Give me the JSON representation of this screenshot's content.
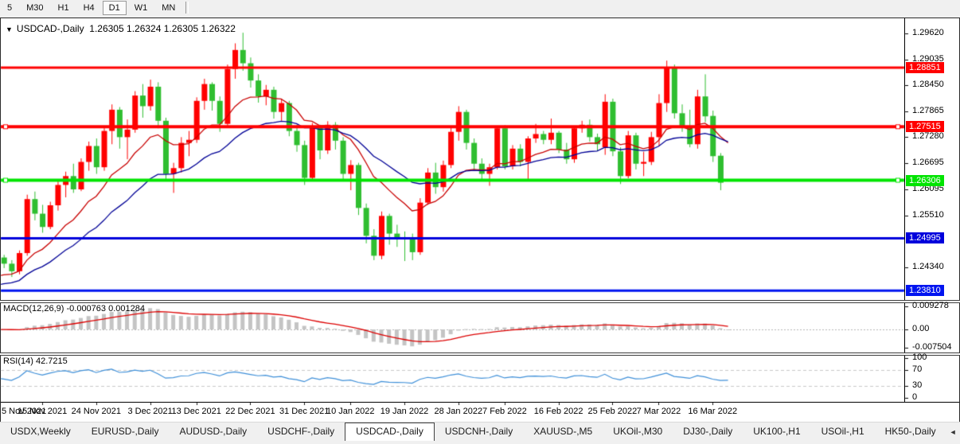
{
  "toolbar": {
    "items": [
      "5",
      "M30",
      "H1",
      "H4",
      "D1",
      "W1",
      "MN"
    ],
    "active": "D1"
  },
  "title": {
    "dropdown_icon": "▼",
    "symbol": "USDCAD-,Daily",
    "open": "1.26305",
    "high": "1.26324",
    "low": "1.26305",
    "close": "1.26322"
  },
  "chart_data": {
    "type": "candlestick",
    "symbol": "USDCAD",
    "timeframe": "Daily",
    "y_range": {
      "top": 1.2984,
      "bottom": 1.236
    },
    "y_ticks": [
      {
        "label": "1.29620",
        "value": 1.2962
      },
      {
        "label": "1.29035",
        "value": 1.29035
      },
      {
        "label": "1.28450",
        "value": 1.2845
      },
      {
        "label": "1.27865",
        "value": 1.27865
      },
      {
        "label": "1.27280",
        "value": 1.2728
      },
      {
        "label": "1.26695",
        "value": 1.26695
      },
      {
        "label": "1.26095",
        "value": 1.26095
      },
      {
        "label": "1.25510",
        "value": 1.2551
      },
      {
        "label": "1.24340",
        "value": 1.2434
      }
    ],
    "price_lines": [
      {
        "label": "1.28851",
        "value": 1.28851,
        "color": "#FF0000",
        "width": 3,
        "handles": false
      },
      {
        "label": "1.27515",
        "value": 1.27515,
        "color": "#FF0000",
        "width": 4,
        "handles": true
      },
      {
        "label": "1.26306",
        "value": 1.26306,
        "color": "#00E400",
        "width": 4,
        "handles": true
      },
      {
        "label": "1.24995",
        "value": 1.24995,
        "color": "#0000DC",
        "width": 3,
        "handles": false
      },
      {
        "label": "1.23810",
        "value": 1.2381,
        "color": "#0014F0",
        "width": 3,
        "handles": false
      }
    ],
    "x_labels": [
      {
        "text": "5 Nov 2021",
        "index": 0
      },
      {
        "text": "15 Nov 2021",
        "index": 6
      },
      {
        "text": "24 Nov 2021",
        "index": 13
      },
      {
        "text": "3 Dec 2021",
        "index": 20
      },
      {
        "text": "13 Dec 2021",
        "index": 26
      },
      {
        "text": "22 Dec 2021",
        "index": 33
      },
      {
        "text": "31 Dec 2021",
        "index": 40
      },
      {
        "text": "10 Jan 2022",
        "index": 46
      },
      {
        "text": "19 Jan 2022",
        "index": 53
      },
      {
        "text": "28 Jan 2022",
        "index": 60
      },
      {
        "text": "7 Feb 2022",
        "index": 66
      },
      {
        "text": "16 Feb 2022",
        "index": 73
      },
      {
        "text": "25 Feb 2022",
        "index": 80
      },
      {
        "text": "7 Mar 2022",
        "index": 86
      },
      {
        "text": "16 Mar 2022",
        "index": 93
      }
    ],
    "candles": [
      [
        1.2452,
        1.2468,
        1.2441,
        1.2456
      ],
      [
        1.2456,
        1.2462,
        1.2432,
        1.2442
      ],
      [
        1.2442,
        1.245,
        1.2412,
        1.2425
      ],
      [
        1.2425,
        1.2472,
        1.2418,
        1.2466
      ],
      [
        1.2466,
        1.2598,
        1.246,
        1.2588
      ],
      [
        1.2588,
        1.2605,
        1.254,
        1.2555
      ],
      [
        1.2555,
        1.2575,
        1.2512,
        1.2525
      ],
      [
        1.2525,
        1.2582,
        1.252,
        1.2574
      ],
      [
        1.2574,
        1.263,
        1.2562,
        1.262
      ],
      [
        1.262,
        1.265,
        1.2592,
        1.264
      ],
      [
        1.264,
        1.2668,
        1.2602,
        1.261
      ],
      [
        1.261,
        1.268,
        1.2606,
        1.2672
      ],
      [
        1.2672,
        1.2718,
        1.2652,
        1.2708
      ],
      [
        1.2708,
        1.2725,
        1.2645,
        1.266
      ],
      [
        1.266,
        1.275,
        1.2652,
        1.2742
      ],
      [
        1.2742,
        1.2802,
        1.2712,
        1.279
      ],
      [
        1.279,
        1.2796,
        1.2702,
        1.2728
      ],
      [
        1.2728,
        1.2768,
        1.2678,
        1.2745
      ],
      [
        1.2745,
        1.2832,
        1.2738,
        1.2822
      ],
      [
        1.2822,
        1.2848,
        1.2772,
        1.2798
      ],
      [
        1.2798,
        1.2858,
        1.2788,
        1.2842
      ],
      [
        1.2842,
        1.2852,
        1.2748,
        1.2765
      ],
      [
        1.2765,
        1.2772,
        1.2632,
        1.2645
      ],
      [
        1.2645,
        1.267,
        1.2602,
        1.2658
      ],
      [
        1.2658,
        1.2728,
        1.2648,
        1.2715
      ],
      [
        1.2715,
        1.2742,
        1.2685,
        1.2722
      ],
      [
        1.2722,
        1.2818,
        1.2715,
        1.281
      ],
      [
        1.281,
        1.286,
        1.279,
        1.2848
      ],
      [
        1.2848,
        1.2852,
        1.2788,
        1.281
      ],
      [
        1.281,
        1.282,
        1.274,
        1.2758
      ],
      [
        1.2758,
        1.2892,
        1.2752,
        1.2882
      ],
      [
        1.2882,
        1.294,
        1.286,
        1.2925
      ],
      [
        1.2925,
        1.2964,
        1.2878,
        1.2895
      ],
      [
        1.2895,
        1.2908,
        1.284,
        1.2856
      ],
      [
        1.2856,
        1.287,
        1.2806,
        1.282
      ],
      [
        1.282,
        1.2846,
        1.28,
        1.2835
      ],
      [
        1.2835,
        1.2842,
        1.277,
        1.2785
      ],
      [
        1.2785,
        1.2815,
        1.2765,
        1.2805
      ],
      [
        1.2805,
        1.281,
        1.273,
        1.2742
      ],
      [
        1.2742,
        1.2756,
        1.2695,
        1.271
      ],
      [
        1.271,
        1.272,
        1.262,
        1.2636
      ],
      [
        1.2636,
        1.276,
        1.263,
        1.275
      ],
      [
        1.275,
        1.2756,
        1.2678,
        1.2698
      ],
      [
        1.2698,
        1.2764,
        1.269,
        1.2756
      ],
      [
        1.2756,
        1.2762,
        1.27,
        1.272
      ],
      [
        1.272,
        1.2728,
        1.263,
        1.2645
      ],
      [
        1.2645,
        1.2676,
        1.2608,
        1.2665
      ],
      [
        1.2665,
        1.267,
        1.2552,
        1.2568
      ],
      [
        1.2568,
        1.2578,
        1.2488,
        1.2505
      ],
      [
        1.2505,
        1.252,
        1.245,
        1.246
      ],
      [
        1.246,
        1.256,
        1.2452,
        1.255
      ],
      [
        1.255,
        1.2555,
        1.2485,
        1.251
      ],
      [
        1.251,
        1.253,
        1.248,
        1.25
      ],
      [
        1.25,
        1.2515,
        1.2448,
        1.2498
      ],
      [
        1.2498,
        1.251,
        1.245,
        1.2468
      ],
      [
        1.2468,
        1.259,
        1.2462,
        1.258
      ],
      [
        1.258,
        1.2658,
        1.2575,
        1.2648
      ],
      [
        1.2648,
        1.267,
        1.26,
        1.2615
      ],
      [
        1.2615,
        1.2675,
        1.2605,
        1.2665
      ],
      [
        1.2665,
        1.275,
        1.2658,
        1.274
      ],
      [
        1.274,
        1.2798,
        1.272,
        1.2785
      ],
      [
        1.2785,
        1.279,
        1.27,
        1.2715
      ],
      [
        1.2715,
        1.2725,
        1.2655,
        1.2668
      ],
      [
        1.2668,
        1.268,
        1.2632,
        1.2645
      ],
      [
        1.2645,
        1.2668,
        1.2618,
        1.266
      ],
      [
        1.266,
        1.2752,
        1.2655,
        1.2748
      ],
      [
        1.2748,
        1.2755,
        1.2655,
        1.2662
      ],
      [
        1.2662,
        1.271,
        1.2655,
        1.2702
      ],
      [
        1.2702,
        1.2712,
        1.2662,
        1.2672
      ],
      [
        1.2672,
        1.273,
        1.2628,
        1.2725
      ],
      [
        1.2725,
        1.2758,
        1.2715,
        1.2735
      ],
      [
        1.2735,
        1.2742,
        1.2712,
        1.2722
      ],
      [
        1.2722,
        1.277,
        1.2712,
        1.2738
      ],
      [
        1.2738,
        1.2742,
        1.2692,
        1.27
      ],
      [
        1.27,
        1.2715,
        1.2668,
        1.2678
      ],
      [
        1.2678,
        1.2752,
        1.267,
        1.2748
      ],
      [
        1.2748,
        1.2765,
        1.2738,
        1.2756
      ],
      [
        1.2756,
        1.2768,
        1.2718,
        1.2728
      ],
      [
        1.2728,
        1.2736,
        1.2698,
        1.2712
      ],
      [
        1.2705,
        1.2825,
        1.2688,
        1.2808
      ],
      [
        1.2808,
        1.2815,
        1.2685,
        1.2696
      ],
      [
        1.2696,
        1.2705,
        1.2622,
        1.264
      ],
      [
        1.264,
        1.2742,
        1.2635,
        1.2732
      ],
      [
        1.2732,
        1.2738,
        1.2655,
        1.2668
      ],
      [
        1.2668,
        1.2695,
        1.264,
        1.2672
      ],
      [
        1.2672,
        1.274,
        1.2665,
        1.2728
      ],
      [
        1.2728,
        1.2825,
        1.2708,
        1.2805
      ],
      [
        1.2805,
        1.2901,
        1.2785,
        1.2886
      ],
      [
        1.2886,
        1.2892,
        1.277,
        1.2782
      ],
      [
        1.2782,
        1.2802,
        1.274,
        1.2752
      ],
      [
        1.2752,
        1.279,
        1.2705,
        1.2712
      ],
      [
        1.2712,
        1.2835,
        1.2702,
        1.282
      ],
      [
        1.282,
        1.287,
        1.2762,
        1.2775
      ],
      [
        1.2776,
        1.2788,
        1.2672,
        1.2685
      ],
      [
        1.2686,
        1.2692,
        1.2608,
        1.2625
      ],
      [
        1.26305,
        1.26324,
        1.26305,
        1.26322
      ]
    ],
    "moving_averages": [
      {
        "name": "ma-fast",
        "color": "#C80000",
        "alpha": 0.15,
        "seed": 1.2405
      },
      {
        "name": "ma-slow",
        "color": "#000096",
        "alpha": 0.075,
        "seed": 1.2388
      }
    ],
    "macd": {
      "label": "MACD(12,26,9)",
      "values_text": "-0.000763 0.001284",
      "value_main": -0.000763,
      "value_signal": 0.001284,
      "params": [
        12,
        26,
        9
      ],
      "axis": [
        {
          "label": "0.009278",
          "value": 0.009278
        },
        {
          "label": "0.00",
          "value": 0
        },
        {
          "label": "-0.007504",
          "value": -0.007504
        }
      ]
    },
    "rsi": {
      "label": "RSI(14)",
      "value_text": "42.7215",
      "value": 42.7215,
      "period": 14,
      "levels": [
        70,
        30
      ],
      "axis": [
        {
          "label": "100",
          "value": 100
        },
        {
          "label": "70",
          "value": 70
        },
        {
          "label": "30",
          "value": 30
        },
        {
          "label": "0",
          "value": 0
        }
      ]
    }
  },
  "colors": {
    "candle_up": "#FF0000",
    "candle_down": "#2FBE30",
    "macd_hist": "#C4C4C4",
    "macd_signal": "#DC0000",
    "rsi_line": "#3E8FD8",
    "level_dash": "#C8C8C8"
  },
  "tabs": {
    "items": [
      "USDX,Weekly",
      "EURUSD-,Daily",
      "AUDUSD-,Daily",
      "USDCHF-,Daily",
      "USDCAD-,Daily",
      "USDCNH-,Daily",
      "XAUUSD-,M5",
      "UKOil-,M30",
      "DJ30-,Daily",
      "UK100-,H1",
      "USOil-,H1",
      "HK50-,Daily"
    ],
    "active_index": 4,
    "scroll_left_icon": "◄",
    "scroll_right_icon": "►"
  }
}
